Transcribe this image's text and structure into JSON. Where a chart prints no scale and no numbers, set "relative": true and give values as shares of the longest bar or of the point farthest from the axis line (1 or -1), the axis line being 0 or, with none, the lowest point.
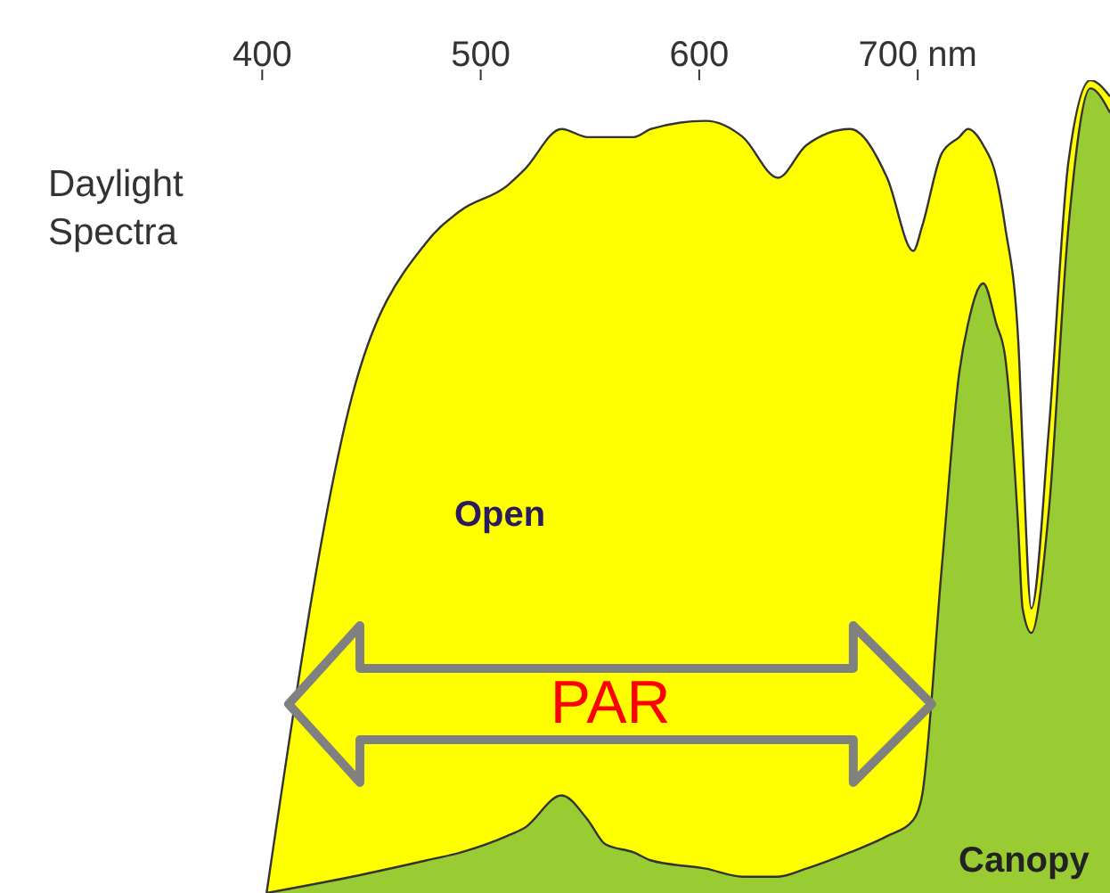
{
  "chart_data": {
    "type": "area",
    "title": "Daylight Spectra",
    "relative": true,
    "x": [
      402,
      441,
      475,
      491,
      512,
      520,
      537,
      549,
      557,
      570,
      578,
      603,
      620,
      636,
      649,
      669,
      686,
      698,
      702,
      711,
      719,
      723,
      730,
      736,
      740,
      746,
      748,
      752,
      760,
      769,
      779,
      788
    ],
    "xlim": [
      280,
      788
    ],
    "xticks": [
      400,
      500,
      600,
      {
        "value": 700,
        "label": "700 nm"
      }
    ],
    "series": [
      {
        "name": "Open",
        "color": "#ffff00",
        "values": [
          0,
          0.61,
          0.8,
          0.84,
          0.87,
          0.89,
          0.94,
          0.93,
          0.93,
          0.93,
          0.94,
          0.95,
          0.93,
          0.88,
          0.92,
          0.94,
          0.88,
          0.79,
          0.82,
          0.91,
          0.93,
          0.94,
          0.92,
          0.88,
          0.82,
          0.68,
          0.55,
          0.35,
          0.57,
          0.9,
          1,
          0.98
        ]
      },
      {
        "name": "Canopy",
        "color": "#99cc33",
        "values": [
          0,
          0.02,
          0.04,
          0.05,
          0.07,
          0.08,
          0.12,
          0.09,
          0.06,
          0.05,
          0.04,
          0.03,
          0.02,
          0.02,
          0.03,
          0.05,
          0.07,
          0.09,
          0.12,
          0.4,
          0.64,
          0.7,
          0.75,
          0.7,
          0.66,
          0.45,
          0.35,
          0.32,
          0.47,
          0.82,
          0.99,
          0.96
        ]
      }
    ],
    "annotations": [
      "PAR"
    ],
    "grid": false,
    "legend": false
  }
}
